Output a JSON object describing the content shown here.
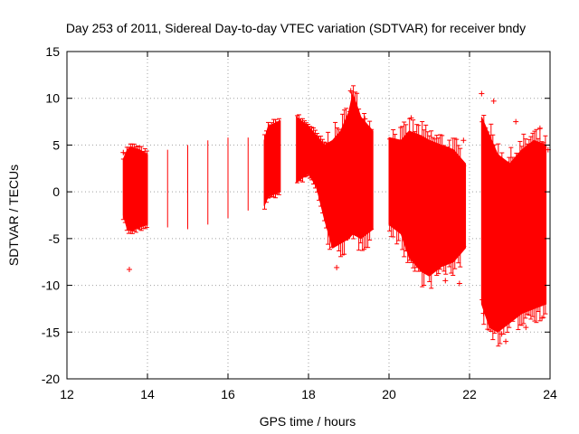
{
  "chart_data": {
    "type": "scatter",
    "title": "Day 253 of 2011, Sidereal Day-to-day VTEC variation (SDTVAR) for receiver bndy",
    "xlabel": "GPS time / hours",
    "ylabel": "SDTVAR / TECUs",
    "xlim": [
      12,
      24
    ],
    "ylim": [
      -20,
      15
    ],
    "xticks": [
      12,
      14,
      16,
      18,
      20,
      22,
      24
    ],
    "yticks": [
      -20,
      -15,
      -10,
      -5,
      0,
      5,
      10,
      15
    ],
    "xtick_labels": [
      "12",
      "14",
      "16",
      "18",
      "20",
      "22",
      "24"
    ],
    "ytick_labels": [
      "-20",
      "-15",
      "-10",
      "-5",
      "0",
      "5",
      "10",
      "15"
    ],
    "grid": true,
    "marker": "+",
    "color": "#ff0000",
    "series": [
      {
        "name": "SDTVAR",
        "envelope": {
          "x": [
            13.4,
            13.5,
            13.6,
            13.8,
            14.0,
            14.5,
            15.0,
            15.5,
            16.0,
            16.5,
            16.9,
            17.0,
            17.3,
            17.7,
            18.0,
            18.2,
            18.4,
            18.6,
            18.8,
            19.0,
            19.1,
            19.3,
            19.6,
            20.0,
            20.3,
            20.5,
            20.8,
            21.0,
            21.3,
            21.6,
            21.9,
            22.3,
            22.5,
            22.7,
            23.0,
            23.3,
            23.6,
            23.9
          ],
          "upper": [
            3.5,
            4.5,
            4.8,
            4.5,
            4.0,
            4.5,
            5.0,
            5.5,
            5.8,
            5.8,
            5.5,
            7.0,
            7.6,
            8.0,
            7.0,
            6.0,
            5.0,
            5.5,
            6.5,
            8.5,
            10.5,
            8.0,
            6.5,
            5.8,
            5.5,
            6.5,
            6.0,
            5.5,
            5.0,
            4.5,
            3.0,
            8.0,
            6.0,
            4.0,
            3.0,
            4.5,
            5.5,
            5.0
          ],
          "lower": [
            -2.5,
            -4.0,
            -4.2,
            -3.8,
            -3.5,
            -3.8,
            -4.0,
            -3.5,
            -2.8,
            -2.0,
            -1.5,
            -0.5,
            0.0,
            1.0,
            2.0,
            0.5,
            -3.0,
            -6.0,
            -5.5,
            -5.0,
            -4.5,
            -5.0,
            -4.0,
            -3.5,
            -4.5,
            -7.0,
            -8.5,
            -9.0,
            -8.0,
            -7.5,
            -6.0,
            -12.0,
            -14.5,
            -15.0,
            -14.0,
            -13.0,
            -12.5,
            -12.0
          ]
        },
        "outliers": [
          {
            "x": 13.55,
            "y": -8.3
          },
          {
            "x": 13.4,
            "y": 4.2
          },
          {
            "x": 18.7,
            "y": -8.1
          },
          {
            "x": 19.05,
            "y": 10.8
          },
          {
            "x": 19.4,
            "y": 7.8
          },
          {
            "x": 20.55,
            "y": 7.9
          },
          {
            "x": 21.4,
            "y": -9.5
          },
          {
            "x": 21.75,
            "y": -9.8
          },
          {
            "x": 21.85,
            "y": 5.5
          },
          {
            "x": 22.3,
            "y": 10.5
          },
          {
            "x": 22.6,
            "y": 9.7
          },
          {
            "x": 22.35,
            "y": -13.0
          },
          {
            "x": 22.8,
            "y": -15.2
          },
          {
            "x": 22.9,
            "y": -16.0
          },
          {
            "x": 23.15,
            "y": 7.5
          },
          {
            "x": 23.4,
            "y": -14.5
          },
          {
            "x": 23.75,
            "y": 6.8
          },
          {
            "x": 23.8,
            "y": -13.5
          },
          {
            "x": 23.95,
            "y": 4.5
          }
        ]
      }
    ]
  }
}
